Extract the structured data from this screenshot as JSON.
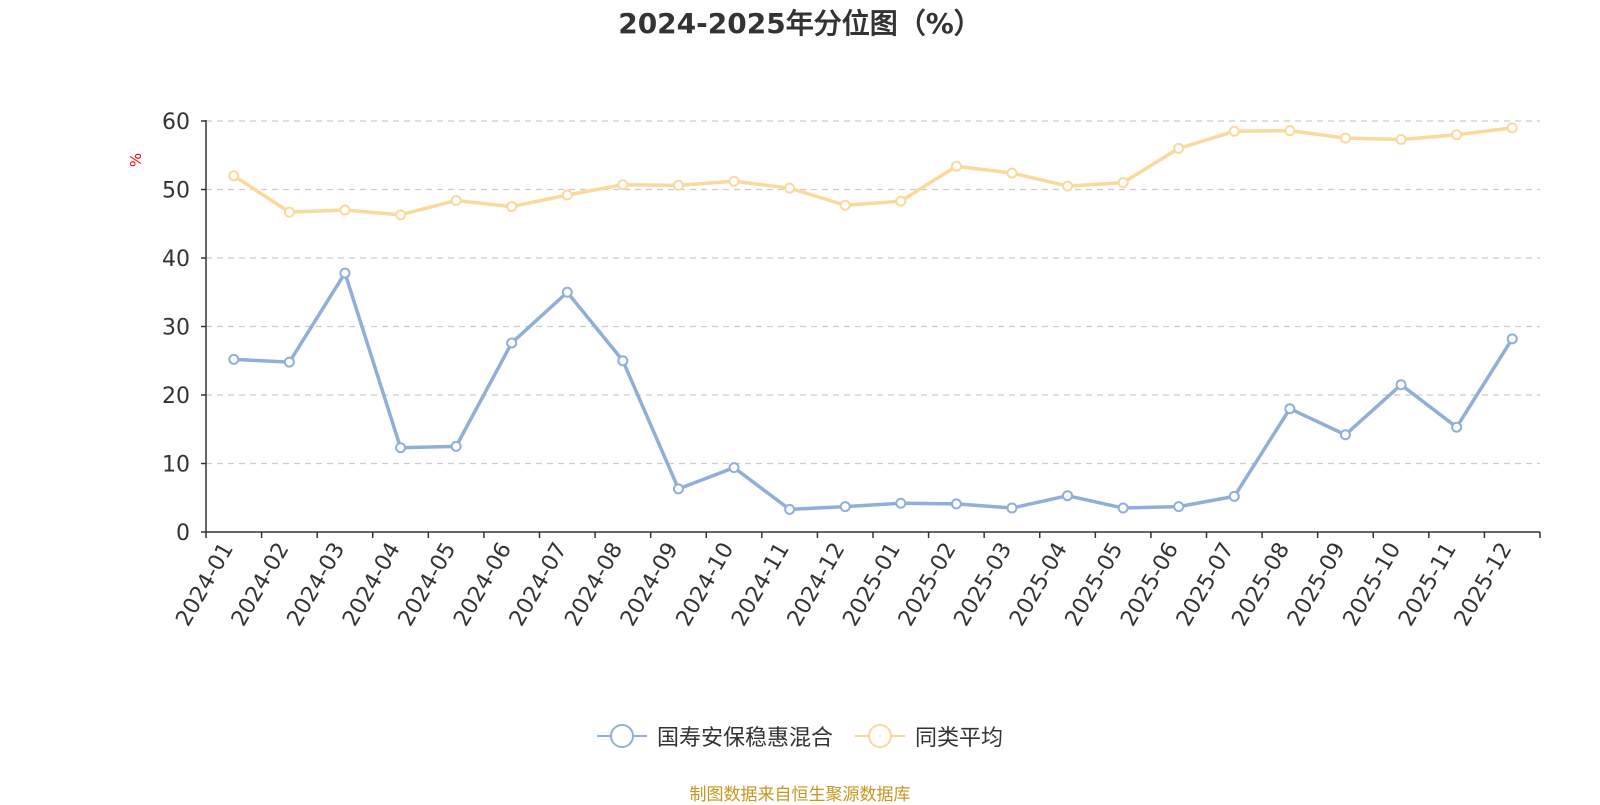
{
  "chart_data": {
    "type": "line",
    "title": "2024-2025年分位图（%）",
    "xlabel": "",
    "ylabel": "%",
    "ylim": [
      0,
      60
    ],
    "yticks": [
      0,
      10,
      20,
      30,
      40,
      50,
      60
    ],
    "grid": true,
    "legend_position": "bottom-center",
    "categories": [
      "2024-01",
      "2024-02",
      "2024-03",
      "2024-04",
      "2024-05",
      "2024-06",
      "2024-07",
      "2024-08",
      "2024-09",
      "2024-10",
      "2024-11",
      "2024-12",
      "2025-01",
      "2025-02",
      "2025-03",
      "2025-04",
      "2025-05",
      "2025-06",
      "2025-07",
      "2025-08",
      "2025-09",
      "2025-10",
      "2025-11",
      "2025-12"
    ],
    "series": [
      {
        "name": "国寿安保稳惠混合",
        "color": "#8fafd9",
        "values": [
          25.2,
          24.8,
          37.8,
          12.3,
          12.5,
          27.6,
          35.0,
          25.0,
          6.3,
          9.4,
          3.3,
          3.7,
          4.2,
          4.1,
          3.5,
          5.3,
          3.5,
          3.7,
          5.2,
          18.0,
          14.2,
          21.5,
          15.3,
          28.2
        ]
      },
      {
        "name": "同类平均",
        "color": "#fbd99b",
        "values": [
          52.0,
          46.7,
          47.0,
          46.3,
          48.4,
          47.5,
          49.2,
          50.7,
          50.6,
          51.2,
          50.2,
          47.7,
          48.3,
          53.4,
          52.4,
          50.5,
          51.0,
          56.0,
          58.5,
          58.6,
          57.5,
          57.3,
          58.0,
          59.0
        ]
      }
    ]
  },
  "footer": {
    "source_note": "制图数据来自恒生聚源数据库"
  }
}
